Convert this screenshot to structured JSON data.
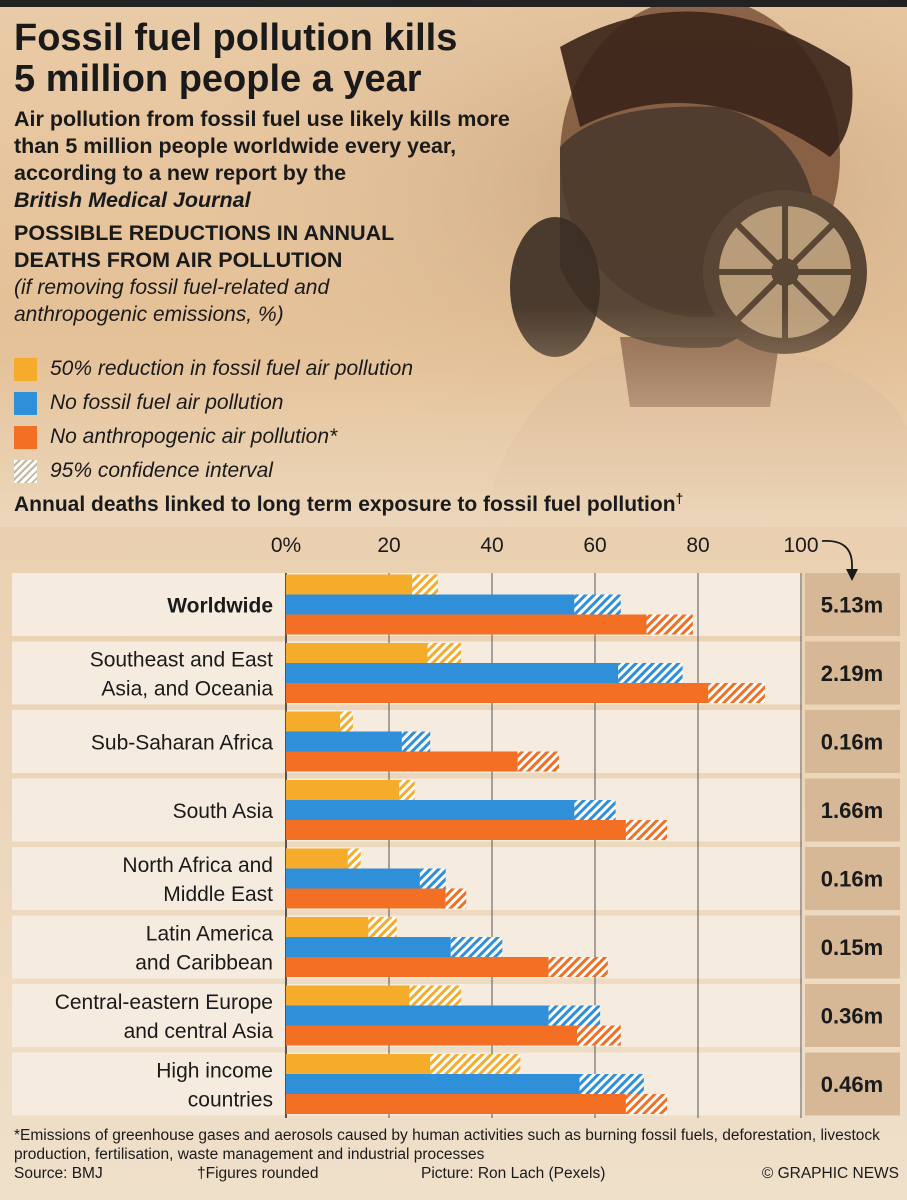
{
  "header": {
    "title_line1": "Fossil fuel pollution kills",
    "title_line2": "5 million people a year",
    "subtitle": "Air pollution from fossil fuel use likely kills more than 5 million people worldwide every year, according to a new report by the",
    "subtitle_journal": "British Medical Journal",
    "section_title_line1": "POSSIBLE REDUCTIONS IN ANNUAL",
    "section_title_line2": "DEATHS FROM AIR POLLUTION",
    "section_note_line1": "(if removing fossil fuel-related and",
    "section_note_line2": "anthropogenic emissions, %)"
  },
  "legend": [
    {
      "label": "50% reduction in fossil fuel air pollution",
      "color": "#f5ac2a",
      "hatched": false
    },
    {
      "label": "No fossil fuel air pollution",
      "color": "#2f8fd9",
      "hatched": false
    },
    {
      "label": "No anthropogenic air pollution*",
      "color": "#f26f24",
      "hatched": false
    },
    {
      "label": "95% confidence interval",
      "color": "#f5e8d6",
      "hatched": true
    }
  ],
  "colors": {
    "yellow": "#f5ac2a",
    "blue": "#2f8fd9",
    "orange": "#f26f24",
    "band_light": "#f6ebdf",
    "band_dark": "#d6b896",
    "grid": "#555555"
  },
  "chart_title": "Annual deaths linked to long term exposure to fossil fuel pollution",
  "chart_title_mark": "†",
  "chart_data": {
    "type": "bar",
    "orientation": "horizontal",
    "xlim": [
      0,
      100
    ],
    "x_ticks": [
      "0%",
      "20",
      "40",
      "60",
      "80",
      "100"
    ],
    "grid": true,
    "series": [
      {
        "name": "50% reduction in fossil fuel air pollution"
      },
      {
        "name": "No fossil fuel air pollution"
      },
      {
        "name": "No anthropogenic air pollution*"
      }
    ],
    "categories": [
      {
        "label": "Worldwide",
        "bold": true,
        "deaths": "5.13m",
        "values": [
          [
            24.5,
            29.5
          ],
          [
            56,
            65
          ],
          [
            70,
            79
          ]
        ]
      },
      {
        "label": "Southeast and East\nAsia, and Oceania",
        "bold": false,
        "deaths": "2.19m",
        "values": [
          [
            27.5,
            34
          ],
          [
            64.5,
            77
          ],
          [
            82,
            93
          ]
        ]
      },
      {
        "label": "Sub-Saharan Africa",
        "bold": false,
        "deaths": "0.16m",
        "values": [
          [
            10.5,
            13
          ],
          [
            22.5,
            28
          ],
          [
            45,
            53
          ]
        ]
      },
      {
        "label": "South Asia",
        "bold": false,
        "deaths": "1.66m",
        "values": [
          [
            22,
            25
          ],
          [
            56,
            64
          ],
          [
            66,
            74
          ]
        ]
      },
      {
        "label": "North Africa and\nMiddle East",
        "bold": false,
        "deaths": "0.16m",
        "values": [
          [
            12,
            14.5
          ],
          [
            26,
            31
          ],
          [
            31,
            35
          ]
        ]
      },
      {
        "label": "Latin America\nand Caribbean",
        "bold": false,
        "deaths": "0.15m",
        "values": [
          [
            16,
            21.5
          ],
          [
            32,
            42
          ],
          [
            51,
            62.5
          ]
        ]
      },
      {
        "label": "Central-eastern Europe\nand central Asia",
        "bold": false,
        "deaths": "0.36m",
        "values": [
          [
            24,
            34
          ],
          [
            51,
            61
          ],
          [
            56.5,
            65
          ]
        ]
      },
      {
        "label": "High income\ncountries",
        "bold": false,
        "deaths": "0.46m",
        "values": [
          [
            28,
            45.5
          ],
          [
            57,
            69.5
          ],
          [
            66,
            74
          ]
        ]
      }
    ]
  },
  "footer": {
    "note": "*Emissions of greenhouse gases and aerosols caused by human activities such as burning fossil fuels, deforestation, livestock production, fertilisation, waste management and industrial processes",
    "source": "Source: BMJ",
    "rounding": "†Figures rounded",
    "picture": "Picture: Ron Lach (Pexels)",
    "credit": "© GRAPHIC NEWS"
  }
}
